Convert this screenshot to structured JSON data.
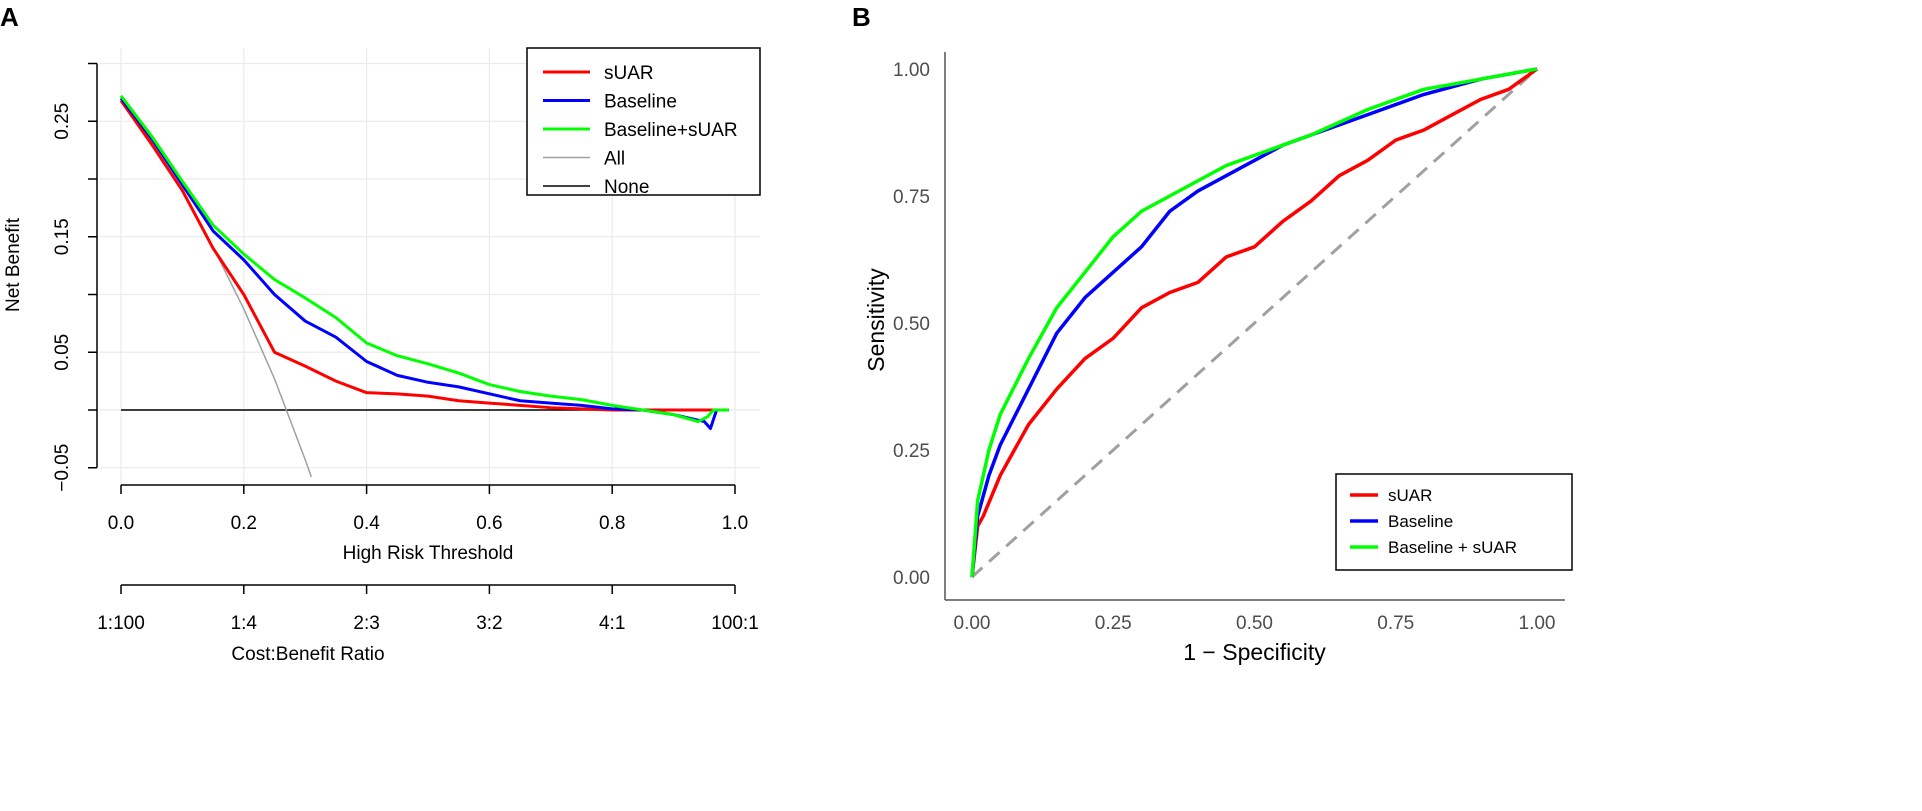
{
  "colors": {
    "suar": "#ff0000",
    "baseline": "#0000ff",
    "combined": "#00ff00",
    "all": "#a0a0a0",
    "none": "#000000",
    "diag": "#a0a0a0"
  },
  "chart_data": [
    {
      "panel_label": "A",
      "type": "line",
      "title": "",
      "xlabel": "High Risk Threshold",
      "ylabel": "Net Benefit",
      "xlim": [
        0,
        1
      ],
      "ylim": [
        -0.05,
        0.3
      ],
      "x_ticks": [
        0.0,
        0.2,
        0.4,
        0.6,
        0.8,
        1.0
      ],
      "x_tick_labels": [
        "0.0",
        "0.2",
        "0.4",
        "0.6",
        "0.8",
        "1.0"
      ],
      "y_ticks": [
        -0.05,
        0.0,
        0.05,
        0.1,
        0.15,
        0.2,
        0.25,
        0.3
      ],
      "y_tick_labels": [
        "−0.05",
        "",
        "0.05",
        "",
        "0.15",
        "",
        "0.25",
        ""
      ],
      "secondary_axis": {
        "label": "Cost:Benefit Ratio",
        "tick_labels": [
          "1:100",
          "1:4",
          "2:3",
          "3:2",
          "4:1",
          "100:1"
        ]
      },
      "grid": true,
      "legend_position": "top-right",
      "series": [
        {
          "name": "sUAR",
          "color_key": "suar",
          "width": 3,
          "x": [
            0,
            0.05,
            0.1,
            0.15,
            0.2,
            0.25,
            0.3,
            0.35,
            0.4,
            0.45,
            0.5,
            0.55,
            0.6,
            0.65,
            0.7,
            0.75,
            0.8,
            0.85,
            0.9,
            0.95,
            0.99
          ],
          "y": [
            0.268,
            0.23,
            0.19,
            0.14,
            0.1,
            0.05,
            0.038,
            0.025,
            0.015,
            0.014,
            0.012,
            0.008,
            0.006,
            0.004,
            0.002,
            0.001,
            0,
            0,
            0,
            0,
            0
          ]
        },
        {
          "name": "Baseline",
          "color_key": "baseline",
          "width": 3,
          "x": [
            0,
            0.05,
            0.1,
            0.15,
            0.2,
            0.25,
            0.3,
            0.35,
            0.4,
            0.45,
            0.5,
            0.55,
            0.6,
            0.65,
            0.7,
            0.75,
            0.8,
            0.85,
            0.9,
            0.95,
            0.96,
            0.97,
            0.99
          ],
          "y": [
            0.27,
            0.235,
            0.195,
            0.155,
            0.13,
            0.1,
            0.077,
            0.063,
            0.042,
            0.03,
            0.024,
            0.02,
            0.014,
            0.008,
            0.006,
            0.004,
            0.001,
            0,
            -0.004,
            -0.01,
            -0.016,
            0,
            0
          ]
        },
        {
          "name": "Baseline+sUAR",
          "color_key": "combined",
          "width": 3,
          "x": [
            0,
            0.05,
            0.1,
            0.15,
            0.2,
            0.25,
            0.3,
            0.35,
            0.4,
            0.45,
            0.5,
            0.55,
            0.6,
            0.65,
            0.7,
            0.75,
            0.8,
            0.85,
            0.9,
            0.94,
            0.955,
            0.965,
            0.99
          ],
          "y": [
            0.272,
            0.237,
            0.198,
            0.16,
            0.135,
            0.113,
            0.097,
            0.08,
            0.058,
            0.047,
            0.04,
            0.032,
            0.022,
            0.016,
            0.012,
            0.009,
            0.004,
            0,
            -0.004,
            -0.01,
            -0.006,
            0,
            0
          ]
        },
        {
          "name": "All",
          "color_key": "all",
          "width": 1.5,
          "x": [
            0,
            0.05,
            0.1,
            0.15,
            0.2,
            0.25,
            0.3,
            0.31
          ],
          "y": [
            0.27,
            0.232,
            0.189,
            0.141,
            0.0875,
            0.027,
            -0.043,
            -0.058
          ]
        },
        {
          "name": "None",
          "color_key": "none",
          "width": 1.5,
          "x": [
            0,
            0.99
          ],
          "y": [
            0,
            0
          ]
        }
      ]
    },
    {
      "panel_label": "B",
      "type": "line",
      "title": "",
      "xlabel": "1 − Specificity",
      "ylabel": "Sensitivity",
      "xlim": [
        0,
        1
      ],
      "ylim": [
        0,
        1
      ],
      "x_ticks": [
        0,
        0.25,
        0.5,
        0.75,
        1.0
      ],
      "x_tick_labels": [
        "0.00",
        "0.25",
        "0.50",
        "0.75",
        "1.00"
      ],
      "y_ticks": [
        0,
        0.25,
        0.5,
        0.75,
        1.0
      ],
      "y_tick_labels": [
        "0.00",
        "0.25",
        "0.50",
        "0.75",
        "1.00"
      ],
      "grid": false,
      "legend_position": "bottom-right",
      "series": [
        {
          "name": "sUAR",
          "color_key": "suar",
          "width": 3.5,
          "x": [
            0,
            0.01,
            0.02,
            0.05,
            0.1,
            0.15,
            0.2,
            0.25,
            0.3,
            0.35,
            0.4,
            0.45,
            0.5,
            0.55,
            0.6,
            0.65,
            0.7,
            0.75,
            0.8,
            0.85,
            0.9,
            0.95,
            1
          ],
          "y": [
            0,
            0.1,
            0.12,
            0.2,
            0.3,
            0.37,
            0.43,
            0.47,
            0.53,
            0.56,
            0.58,
            0.63,
            0.65,
            0.7,
            0.74,
            0.79,
            0.82,
            0.86,
            0.88,
            0.91,
            0.94,
            0.96,
            1
          ]
        },
        {
          "name": "Baseline",
          "color_key": "baseline",
          "width": 3.5,
          "x": [
            0,
            0.01,
            0.03,
            0.05,
            0.1,
            0.15,
            0.2,
            0.25,
            0.3,
            0.35,
            0.4,
            0.45,
            0.5,
            0.55,
            0.6,
            0.7,
            0.8,
            0.9,
            1
          ],
          "y": [
            0,
            0.12,
            0.2,
            0.26,
            0.37,
            0.48,
            0.55,
            0.6,
            0.65,
            0.72,
            0.76,
            0.79,
            0.82,
            0.85,
            0.87,
            0.91,
            0.95,
            0.98,
            1
          ]
        },
        {
          "name": "Baseline + sUAR",
          "color_key": "combined",
          "width": 3.5,
          "x": [
            0,
            0.01,
            0.03,
            0.05,
            0.1,
            0.15,
            0.2,
            0.25,
            0.3,
            0.35,
            0.4,
            0.45,
            0.5,
            0.55,
            0.6,
            0.7,
            0.8,
            0.9,
            1
          ],
          "y": [
            0,
            0.15,
            0.25,
            0.32,
            0.43,
            0.53,
            0.6,
            0.67,
            0.72,
            0.75,
            0.78,
            0.81,
            0.83,
            0.85,
            0.87,
            0.92,
            0.96,
            0.98,
            1
          ]
        }
      ],
      "reference_line": {
        "x": [
          0,
          1
        ],
        "y": [
          0,
          1
        ],
        "style": "dashed"
      }
    }
  ]
}
